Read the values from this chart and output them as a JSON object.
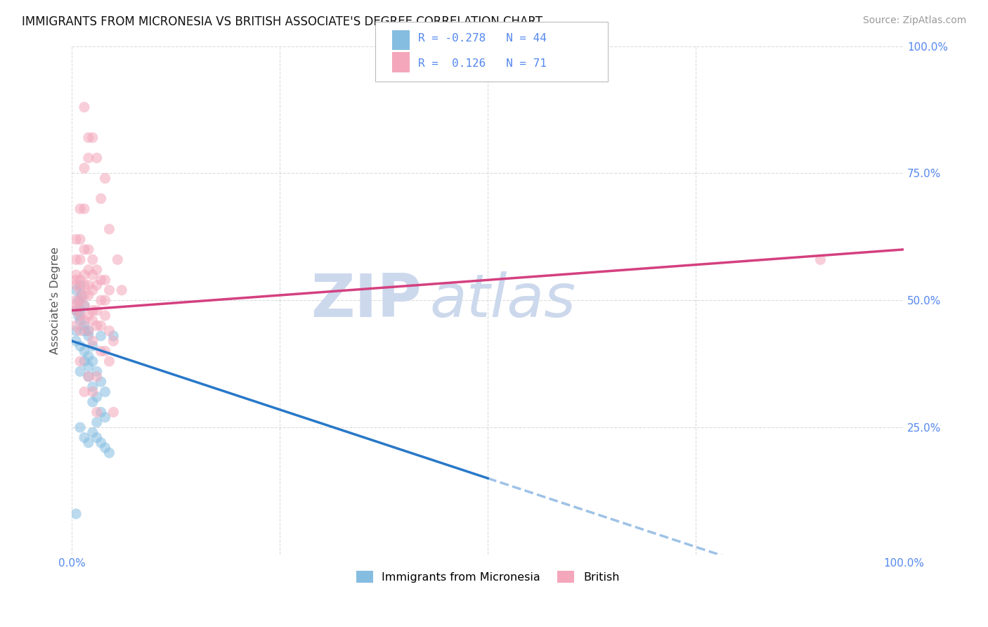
{
  "title": "IMMIGRANTS FROM MICRONESIA VS BRITISH ASSOCIATE'S DEGREE CORRELATION CHART",
  "source_text": "Source: ZipAtlas.com",
  "ylabel": "Associate's Degree",
  "legend_label1": "Immigrants from Micronesia",
  "legend_label2": "British",
  "R1": "-0.278",
  "N1": "44",
  "R2": "0.126",
  "N2": "71",
  "blue_color": "#85bde0",
  "pink_color": "#f4a7bb",
  "blue_line_color": "#2878c8",
  "pink_line_color": "#d44080",
  "axis_color": "#5588ee",
  "watermark_color": "#ccd8ec",
  "background_color": "#ffffff",
  "grid_color": "#cccccc",
  "blue_points": [
    [
      0.5,
      52
    ],
    [
      0.8,
      50
    ],
    [
      1.0,
      53
    ],
    [
      1.2,
      51
    ],
    [
      0.5,
      48
    ],
    [
      0.8,
      47
    ],
    [
      1.5,
      49
    ],
    [
      1.0,
      46
    ],
    [
      2.0,
      44
    ],
    [
      1.5,
      45
    ],
    [
      0.5,
      42
    ],
    [
      1.0,
      41
    ],
    [
      2.0,
      43
    ],
    [
      1.5,
      40
    ],
    [
      2.5,
      38
    ],
    [
      3.0,
      36
    ],
    [
      2.0,
      35
    ],
    [
      3.5,
      34
    ],
    [
      2.5,
      33
    ],
    [
      3.0,
      31
    ],
    [
      4.0,
      32
    ],
    [
      2.5,
      30
    ],
    [
      3.5,
      28
    ],
    [
      4.0,
      27
    ],
    [
      3.0,
      26
    ],
    [
      1.5,
      38
    ],
    [
      2.0,
      37
    ],
    [
      1.0,
      36
    ],
    [
      2.0,
      39
    ],
    [
      2.5,
      41
    ],
    [
      3.5,
      43
    ],
    [
      1.5,
      44
    ],
    [
      1.0,
      48
    ],
    [
      0.5,
      44
    ],
    [
      1.5,
      23
    ],
    [
      2.0,
      22
    ],
    [
      2.5,
      24
    ],
    [
      3.0,
      23
    ],
    [
      3.5,
      22
    ],
    [
      4.0,
      21
    ],
    [
      4.5,
      20
    ],
    [
      1.0,
      25
    ],
    [
      0.5,
      8
    ],
    [
      5.0,
      43
    ]
  ],
  "pink_points": [
    [
      1.5,
      88
    ],
    [
      2.0,
      82
    ],
    [
      2.5,
      82
    ],
    [
      3.0,
      78
    ],
    [
      2.0,
      78
    ],
    [
      1.5,
      76
    ],
    [
      4.0,
      74
    ],
    [
      3.5,
      70
    ],
    [
      1.0,
      68
    ],
    [
      1.5,
      68
    ],
    [
      4.5,
      64
    ],
    [
      0.5,
      62
    ],
    [
      1.0,
      62
    ],
    [
      1.5,
      60
    ],
    [
      2.0,
      60
    ],
    [
      0.5,
      58
    ],
    [
      1.0,
      58
    ],
    [
      2.5,
      58
    ],
    [
      5.5,
      58
    ],
    [
      2.0,
      56
    ],
    [
      3.0,
      56
    ],
    [
      0.5,
      55
    ],
    [
      1.5,
      55
    ],
    [
      2.5,
      55
    ],
    [
      0.5,
      54
    ],
    [
      1.0,
      54
    ],
    [
      3.5,
      54
    ],
    [
      4.0,
      54
    ],
    [
      0.5,
      53
    ],
    [
      1.5,
      53
    ],
    [
      2.0,
      53
    ],
    [
      3.0,
      53
    ],
    [
      1.0,
      52
    ],
    [
      2.5,
      52
    ],
    [
      4.5,
      52
    ],
    [
      6.0,
      52
    ],
    [
      1.5,
      51
    ],
    [
      2.0,
      51
    ],
    [
      0.5,
      50
    ],
    [
      1.0,
      50
    ],
    [
      3.5,
      50
    ],
    [
      4.0,
      50
    ],
    [
      0.5,
      49
    ],
    [
      1.5,
      49
    ],
    [
      0.5,
      48
    ],
    [
      2.5,
      48
    ],
    [
      3.0,
      48
    ],
    [
      1.0,
      47
    ],
    [
      2.0,
      47
    ],
    [
      4.0,
      47
    ],
    [
      1.5,
      46
    ],
    [
      2.5,
      46
    ],
    [
      0.5,
      45
    ],
    [
      3.0,
      45
    ],
    [
      3.5,
      45
    ],
    [
      1.0,
      44
    ],
    [
      2.0,
      44
    ],
    [
      4.5,
      44
    ],
    [
      2.5,
      42
    ],
    [
      5.0,
      42
    ],
    [
      3.5,
      40
    ],
    [
      4.0,
      40
    ],
    [
      1.0,
      38
    ],
    [
      4.5,
      38
    ],
    [
      2.0,
      35
    ],
    [
      3.0,
      35
    ],
    [
      1.5,
      32
    ],
    [
      2.5,
      32
    ],
    [
      3.0,
      28
    ],
    [
      5.0,
      28
    ],
    [
      90,
      58
    ]
  ]
}
